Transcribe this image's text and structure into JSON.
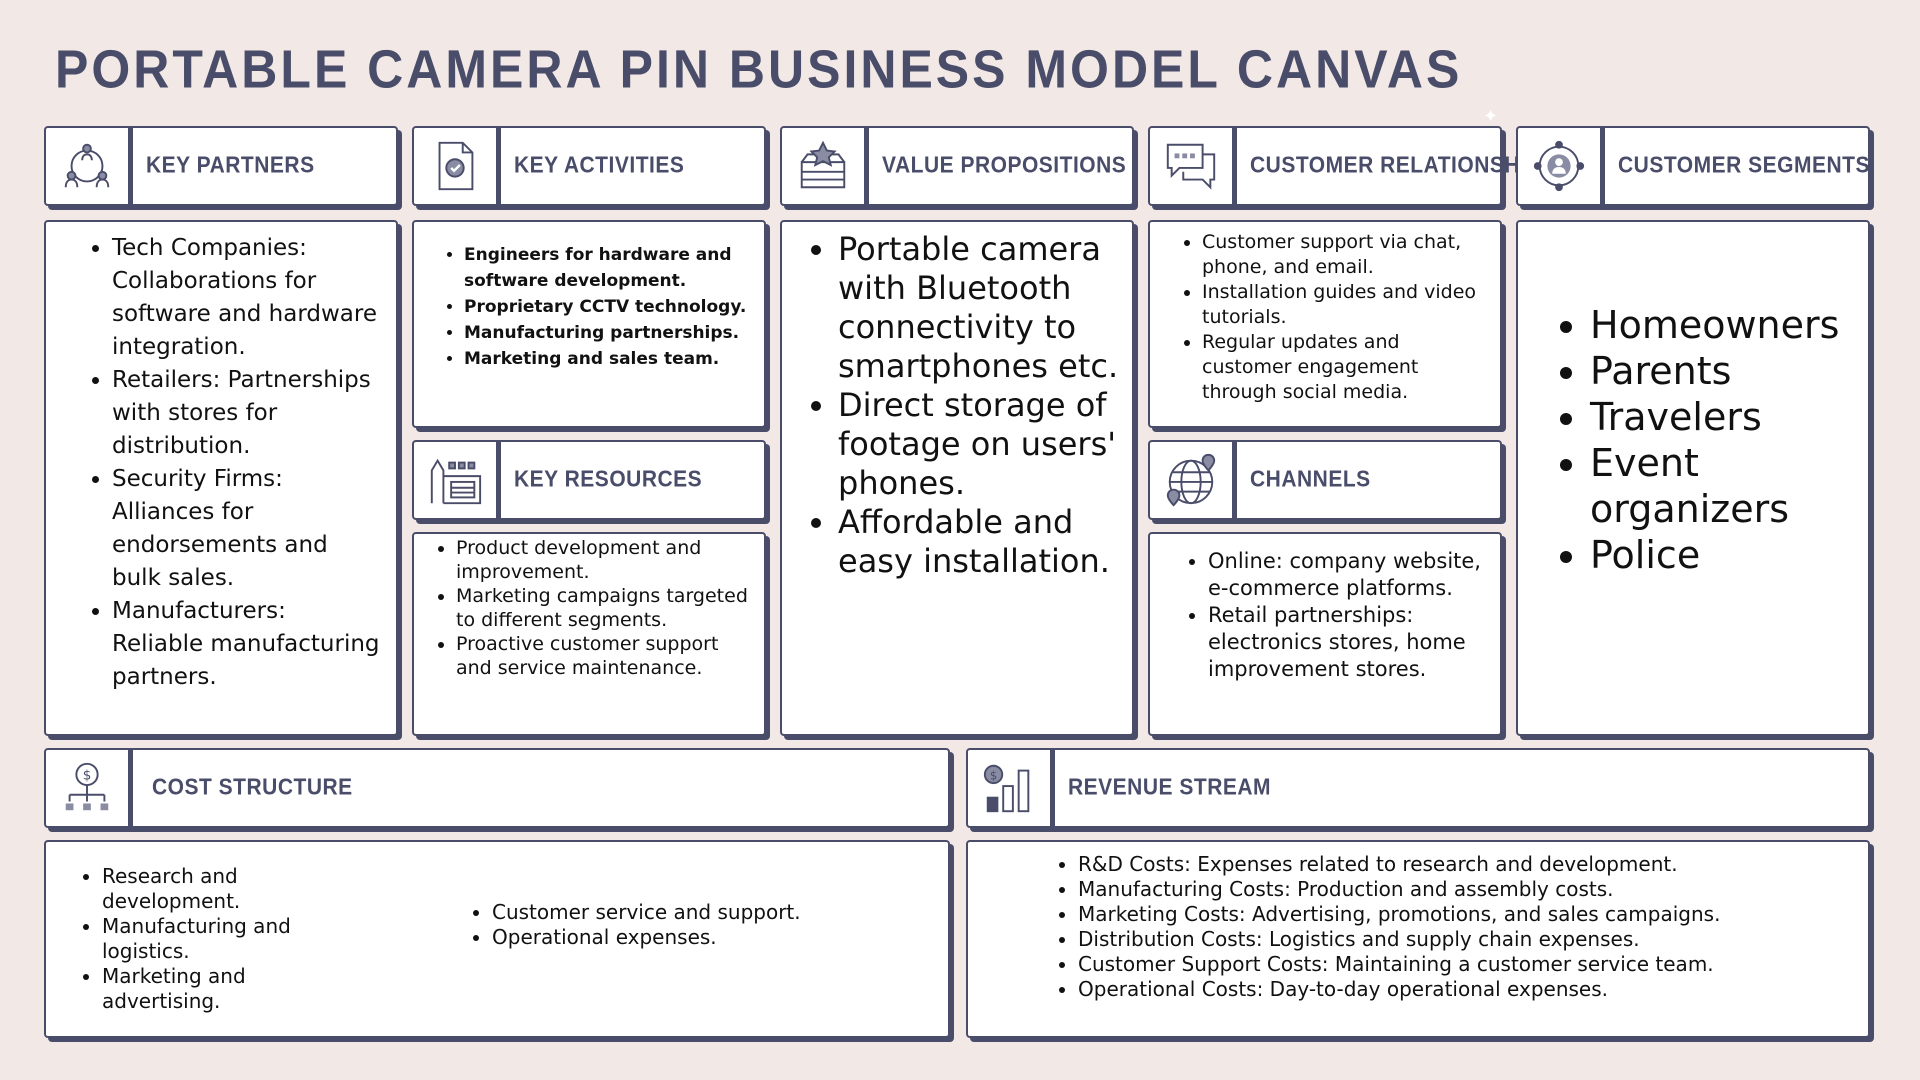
{
  "title": "PORTABLE CAMERA PIN BUSINESS MODEL CANVAS",
  "colors": {
    "accent": "#4a4d6a",
    "background": "#f2e8e5",
    "icon_fill": "#8a8ca4"
  },
  "sections": {
    "key_partners": {
      "label": "KEY PARTNERS",
      "icon": "partners-network-icon",
      "items": [
        "Tech Companies: Collaborations for software and hardware integration.",
        "Retailers: Partnerships with stores for distribution.",
        "Security Firms: Alliances for endorsements and bulk sales.",
        "Manufacturers: Reliable manufacturing partners."
      ]
    },
    "key_activities": {
      "label": "KEY ACTIVITIES",
      "icon": "checklist-document-icon",
      "items": [
        "Engineers for hardware and software development.",
        "Proprietary CCTV technology.",
        "Manufacturing partnerships.",
        "Marketing and sales team."
      ]
    },
    "key_resources": {
      "label": "KEY RESOURCES",
      "icon": "factory-icon",
      "items": [
        "Product development and improvement.",
        "Marketing campaigns targeted to different segments.",
        "Proactive customer support and service maintenance."
      ]
    },
    "value_propositions": {
      "label": "VALUE PROPOSITIONS",
      "icon": "star-box-icon",
      "items": [
        "Portable camera with Bluetooth connectivity to smartphones etc.",
        "Direct storage of footage on users' phones.",
        "Affordable and easy installation."
      ]
    },
    "customer_relationship": {
      "label": "CUSTOMER RELATIONSHIP",
      "icon": "chat-bubbles-icon",
      "items": [
        "Customer support via chat, phone, and email.",
        "Installation guides and video tutorials.",
        "Regular updates and customer engagement through social media."
      ]
    },
    "channels": {
      "label": "CHANNELS",
      "icon": "globe-pins-icon",
      "items": [
        "Online: company website, e-commerce platforms.",
        "Retail partnerships: electronics stores, home improvement stores."
      ]
    },
    "customer_segments": {
      "label": "CUSTOMER SEGMENTS",
      "icon": "user-target-icon",
      "items": [
        "Homeowners",
        "Parents",
        "Travelers",
        "Event organizers",
        "Police"
      ]
    },
    "cost_structure": {
      "label": "COST STRUCTURE",
      "icon": "dollar-hierarchy-icon",
      "items_left": [
        "Research and development.",
        "Manufacturing and logistics.",
        "Marketing and advertising."
      ],
      "items_right": [
        "Customer service and support.",
        "Operational expenses."
      ]
    },
    "revenue_stream": {
      "label": "REVENUE STREAM",
      "icon": "dollar-bar-chart-icon",
      "items": [
        "R&D Costs: Expenses related to research and development.",
        "Manufacturing Costs: Production and assembly costs.",
        "Marketing Costs: Advertising, promotions, and sales campaigns.",
        "Distribution Costs: Logistics and supply chain expenses.",
        "Customer Support Costs: Maintaining a customer service team.",
        "Operational Costs: Day-to-day operational expenses."
      ]
    }
  }
}
